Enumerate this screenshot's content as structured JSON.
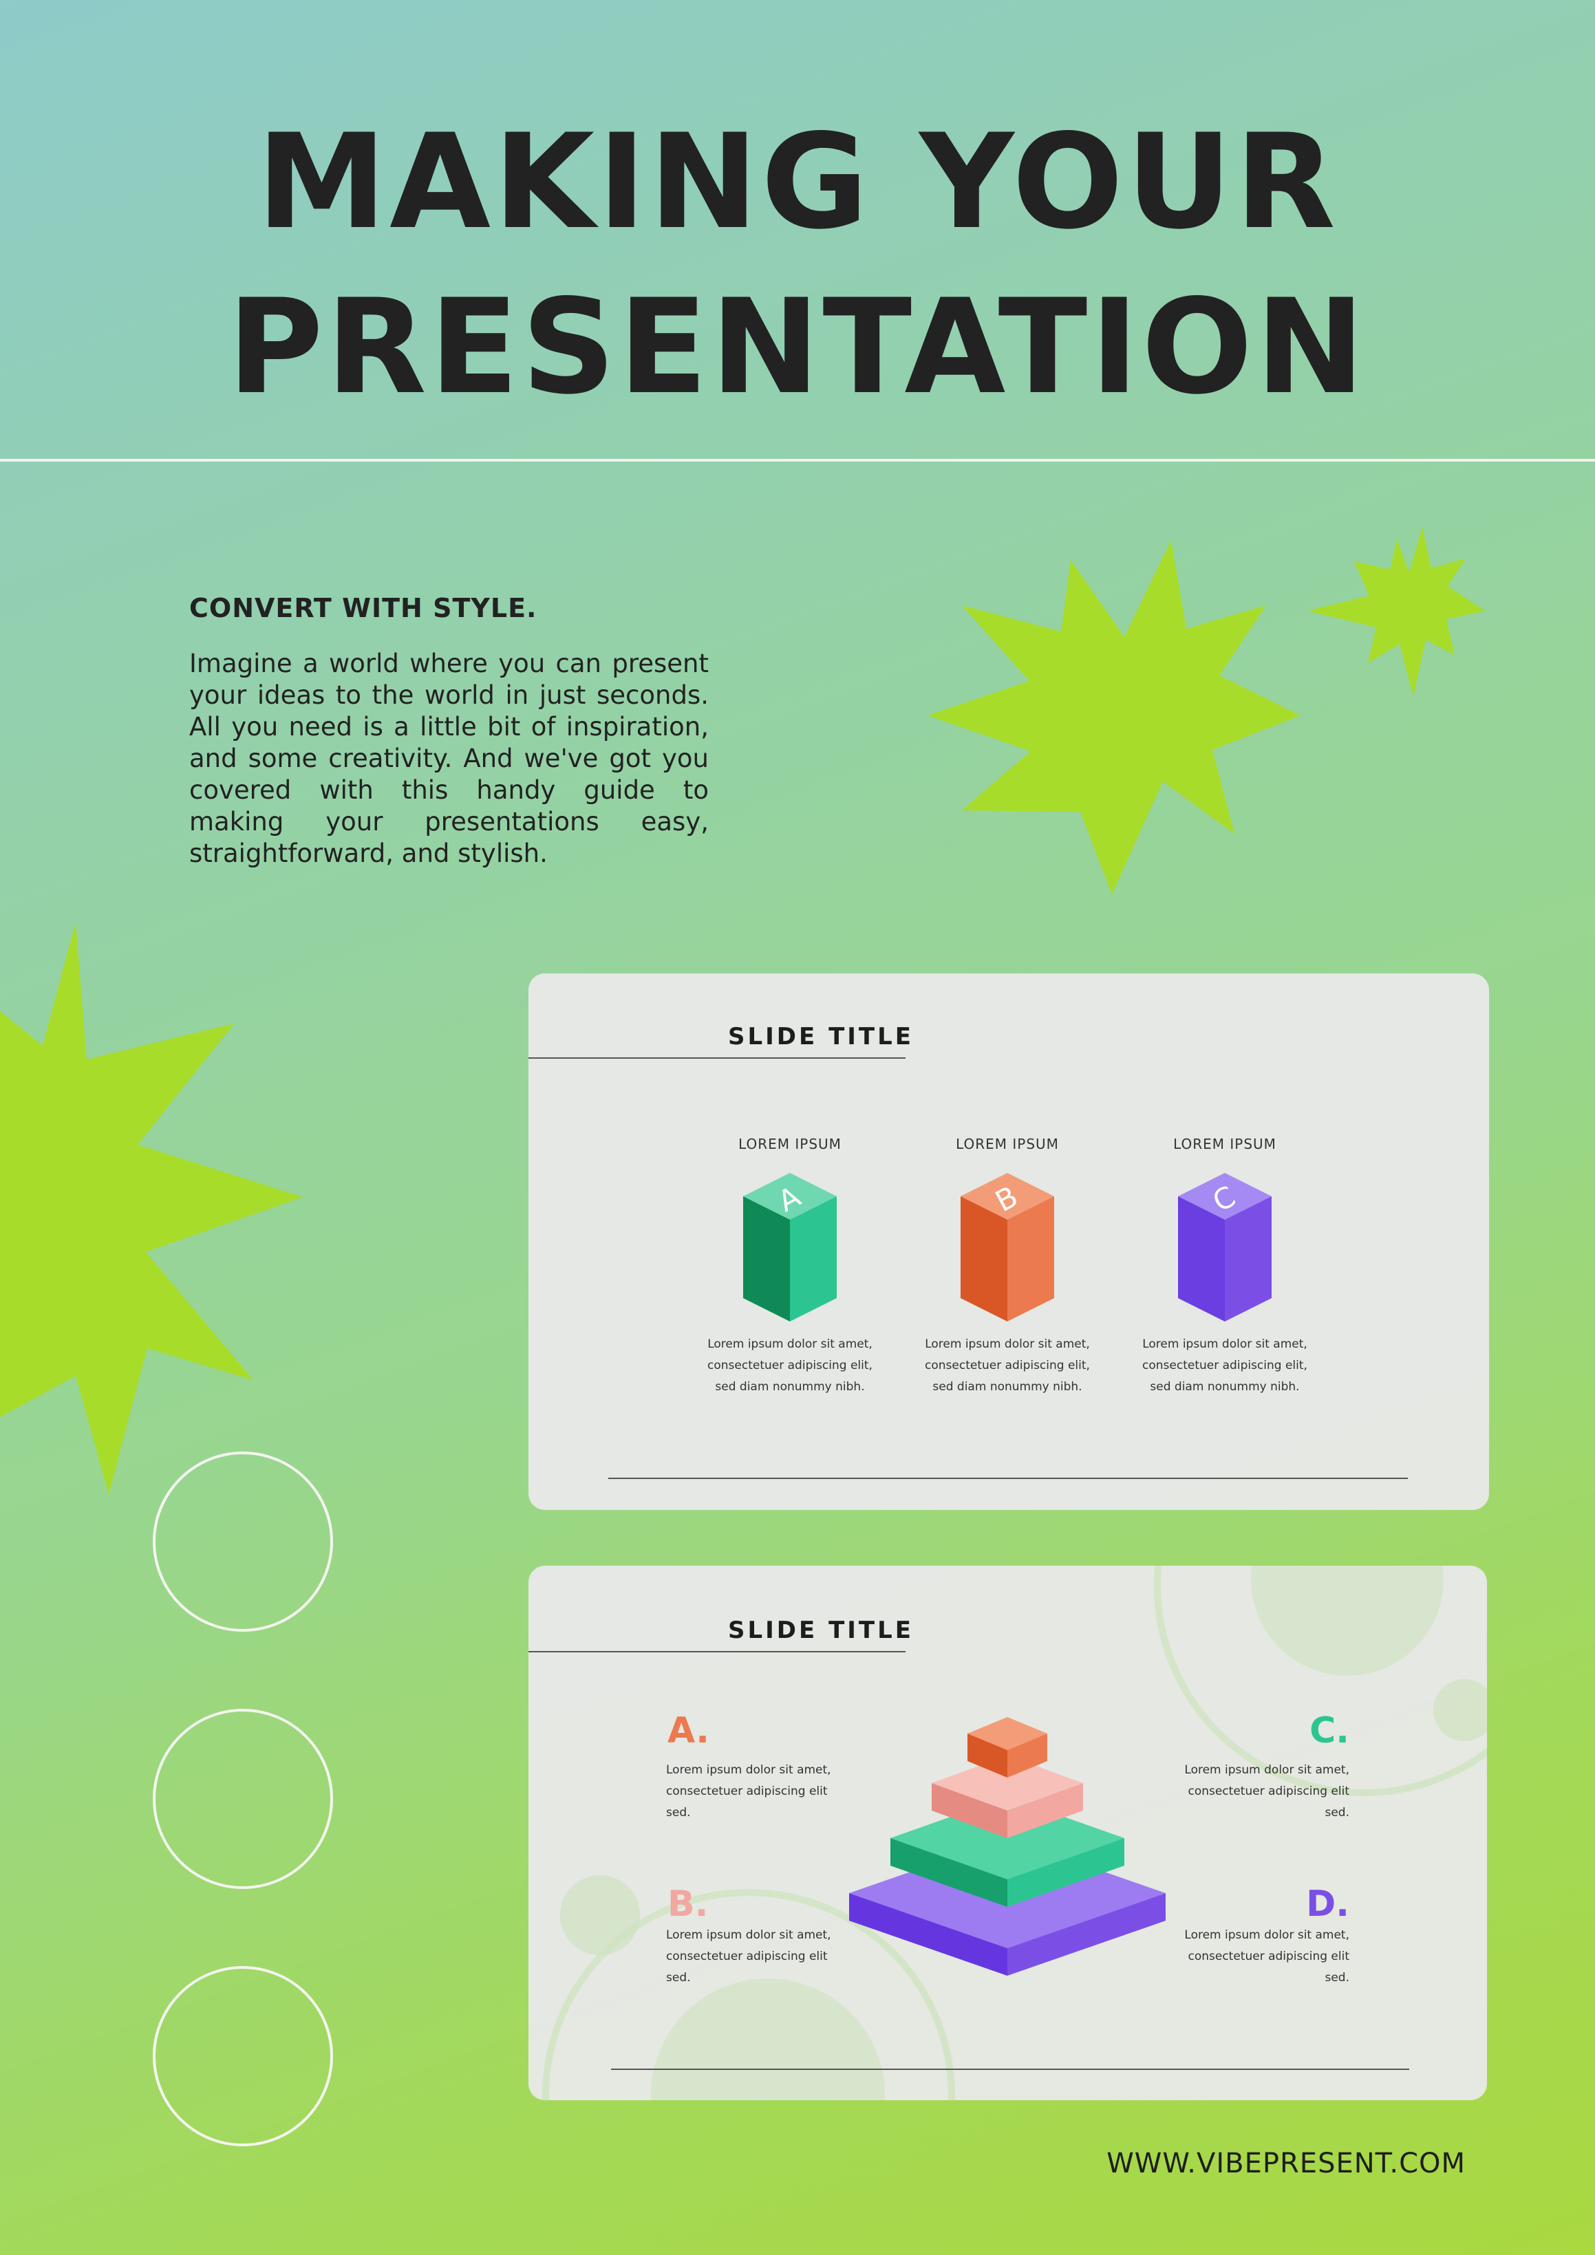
{
  "header": {
    "title_line1": "MAKING YOUR",
    "title_line2": "PRESENTATION"
  },
  "intro": {
    "heading": "CONVERT WITH STYLE.",
    "body": "Imagine a world where you can present your ideas to the world in just seconds. All you need is a little bit of inspiration, and some creativity. And we've got you covered with this handy guide to making your presentations easy, straightforward, and stylish."
  },
  "slide1": {
    "title": "SLIDE TITLE",
    "columns": [
      {
        "label": "LOREM IPSUM",
        "letter": "A",
        "color": "#2cc591",
        "text": "Lorem ipsum dolor sit amet, consectetuer adipiscing elit, sed diam nonummy nibh."
      },
      {
        "label": "LOREM IPSUM",
        "letter": "B",
        "color": "#ec7a4f",
        "text": "Lorem ipsum dolor sit amet, consectetuer adipiscing elit, sed diam nonummy nibh."
      },
      {
        "label": "LOREM IPSUM",
        "letter": "C",
        "color": "#7b4fe6",
        "text": "Lorem ipsum dolor sit amet, consectetuer adipiscing elit, sed diam nonummy nibh."
      }
    ]
  },
  "slide2": {
    "title": "SLIDE TITLE",
    "items": [
      {
        "letter": "A.",
        "color": "#ec7a4f",
        "text": "Lorem ipsum dolor sit amet, consectetuer adipiscing elit sed."
      },
      {
        "letter": "B.",
        "color": "#f2a7a0",
        "text": "Lorem ipsum dolor sit amet, consectetuer adipiscing elit sed."
      },
      {
        "letter": "C.",
        "color": "#2cc591",
        "text": "Lorem ipsum dolor sit amet, consectetuer adipiscing elit sed."
      },
      {
        "letter": "D.",
        "color": "#7b4fe6",
        "text": "Lorem ipsum dolor sit amet, consectetuer adipiscing elit sed."
      }
    ]
  },
  "footer": {
    "website": "WWW.VIBEPRESENT.COM"
  },
  "colors": {
    "starburst": "#a8dc2a",
    "title_text": "#222222"
  }
}
